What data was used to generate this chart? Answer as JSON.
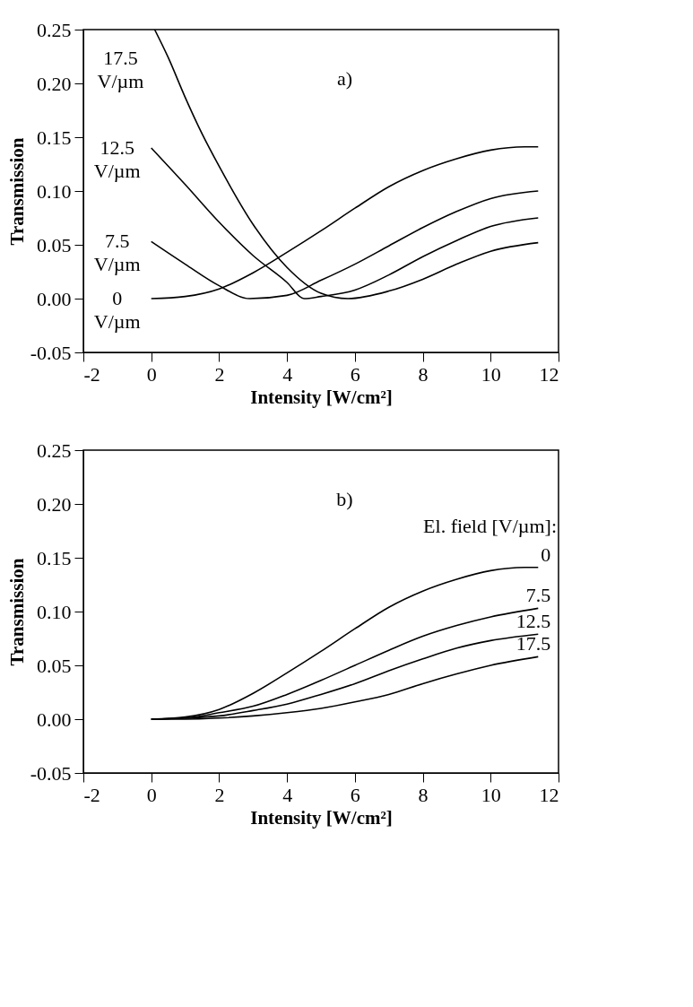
{
  "chart_data": [
    {
      "type": "line",
      "annotations": [
        "a)"
      ],
      "xlabel": "Intensity [W/cm²]",
      "ylabel": "Transmission",
      "xlim": [
        -2,
        12
      ],
      "ylim": [
        -0.05,
        0.25
      ],
      "xticks": [
        -2,
        0,
        2,
        4,
        6,
        8,
        10,
        12
      ],
      "yticks": [
        {
          "value": -0.05,
          "label": "-0.05"
        },
        {
          "value": 0,
          "label": "0.00"
        },
        {
          "value": 0.05,
          "label": "0.05"
        },
        {
          "value": 0.1,
          "label": "0.10"
        },
        {
          "value": 0.15,
          "label": "0.15"
        },
        {
          "value": 0.2,
          "label": "0.20"
        },
        {
          "value": 0.25,
          "label": "0.25"
        }
      ],
      "series": [
        {
          "name": "17.5 V/µm",
          "color": "#000000",
          "x": [
            0.1,
            0.5,
            1,
            1.5,
            2,
            3,
            4,
            5,
            5.8,
            7,
            8,
            9,
            10,
            11.4
          ],
          "values": [
            0.25,
            0.224,
            0.187,
            0.153,
            0.123,
            0.069,
            0.029,
            0.005,
            0,
            0.007,
            0.018,
            0.032,
            0.044,
            0.052
          ]
        },
        {
          "name": "12.5 V/µm",
          "color": "#000000",
          "x": [
            0,
            1,
            2,
            3,
            4,
            4.5,
            5,
            6,
            7,
            8,
            9,
            10,
            11.4
          ],
          "values": [
            0.14,
            0.106,
            0.071,
            0.04,
            0.015,
            0,
            0.002,
            0.008,
            0.022,
            0.039,
            0.054,
            0.067,
            0.075
          ]
        },
        {
          "name": "7.5 V/µm",
          "color": "#000000",
          "x": [
            0,
            1,
            2,
            2.9,
            4,
            5,
            6,
            7,
            8,
            9,
            10,
            11.4
          ],
          "values": [
            0.053,
            0.032,
            0.012,
            0,
            0.003,
            0.017,
            0.032,
            0.049,
            0.066,
            0.081,
            0.093,
            0.1
          ]
        },
        {
          "name": "0 V/µm",
          "color": "#000000",
          "x": [
            0,
            1,
            2,
            3,
            4,
            5,
            6,
            7,
            8,
            9,
            10,
            11,
            11.4
          ],
          "values": [
            0,
            0.002,
            0.009,
            0.024,
            0.043,
            0.063,
            0.084,
            0.104,
            0.119,
            0.13,
            0.138,
            0.141,
            0.141
          ]
        }
      ]
    },
    {
      "type": "line",
      "annotations": [
        "b)"
      ],
      "legend_title": "El. field [V/µm]:",
      "xlabel": "Intensity [W/cm²]",
      "ylabel": "Transmission",
      "xlim": [
        -2,
        12
      ],
      "ylim": [
        -0.05,
        0.25
      ],
      "xticks": [
        -2,
        0,
        2,
        4,
        6,
        8,
        10,
        12
      ],
      "yticks": [
        {
          "value": -0.05,
          "label": "-0.05"
        },
        {
          "value": 0,
          "label": "0.00"
        },
        {
          "value": 0.05,
          "label": "0.05"
        },
        {
          "value": 0.1,
          "label": "0.10"
        },
        {
          "value": 0.15,
          "label": "0.15"
        },
        {
          "value": 0.2,
          "label": "0.20"
        },
        {
          "value": 0.25,
          "label": "0.25"
        }
      ],
      "series": [
        {
          "name": "0",
          "color": "#000000",
          "x": [
            0,
            1,
            2,
            3,
            4,
            5,
            6,
            7,
            8,
            9,
            10,
            11,
            11.4
          ],
          "values": [
            0,
            0.002,
            0.009,
            0.024,
            0.043,
            0.063,
            0.084,
            0.104,
            0.119,
            0.13,
            0.138,
            0.141,
            0.141
          ]
        },
        {
          "name": "7.5",
          "color": "#000000",
          "x": [
            0,
            1,
            2,
            3,
            4,
            5,
            6,
            7,
            8,
            9,
            10,
            11.4
          ],
          "values": [
            0,
            0.001,
            0.006,
            0.012,
            0.023,
            0.036,
            0.05,
            0.064,
            0.077,
            0.087,
            0.095,
            0.103
          ]
        },
        {
          "name": "12.5",
          "color": "#000000",
          "x": [
            0,
            1,
            2,
            3,
            4,
            5,
            6,
            7,
            8,
            9,
            10,
            11.4
          ],
          "values": [
            0,
            0.001,
            0.003,
            0.008,
            0.014,
            0.023,
            0.033,
            0.045,
            0.056,
            0.066,
            0.073,
            0.079
          ]
        },
        {
          "name": "17.5",
          "color": "#000000",
          "x": [
            0,
            1,
            2,
            3,
            4,
            5,
            6,
            7,
            8,
            9,
            10,
            11.4
          ],
          "values": [
            0,
            0,
            0.001,
            0.003,
            0.006,
            0.01,
            0.016,
            0.023,
            0.033,
            0.042,
            0.05,
            0.058
          ]
        }
      ]
    }
  ]
}
